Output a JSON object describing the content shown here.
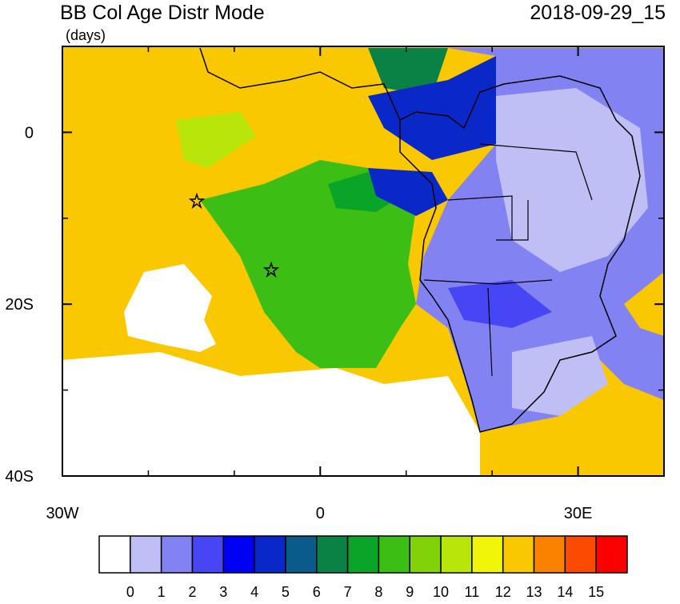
{
  "map": {
    "title": "BB Col Age Distr Mode",
    "subtitle": "(days)",
    "date": "2018-09-29_15",
    "lonlim": [
      -30,
      40
    ],
    "latlim": [
      -40,
      10
    ],
    "xticks": [
      {
        "value": -30,
        "label": "30W"
      },
      0,
      {
        "value": 30,
        "label": "30E"
      }
    ],
    "minor_xticks": [
      -20,
      -10,
      10,
      20,
      40
    ],
    "yticks": [
      0,
      {
        "value": -20,
        "label": "20S"
      },
      {
        "value": -40,
        "label": "40S"
      }
    ],
    "minor_yticks": [
      10,
      -10,
      -30
    ],
    "colorbar": {
      "colors": [
        "#ffffff",
        "#bfbff5",
        "#8282f2",
        "#4646f5",
        "#0000f5",
        "#0a28c8",
        "#0a5a8c",
        "#0a8246",
        "#0aa528",
        "#3cbe14",
        "#82d20a",
        "#b9e60a",
        "#f0f50a",
        "#fac800",
        "#fa8200",
        "#fa4b00",
        "#fa0000"
      ],
      "levels": [
        0,
        1,
        2,
        3,
        4,
        5,
        6,
        7,
        8,
        9,
        10,
        11,
        12,
        13,
        14,
        15
      ]
    }
  }
}
